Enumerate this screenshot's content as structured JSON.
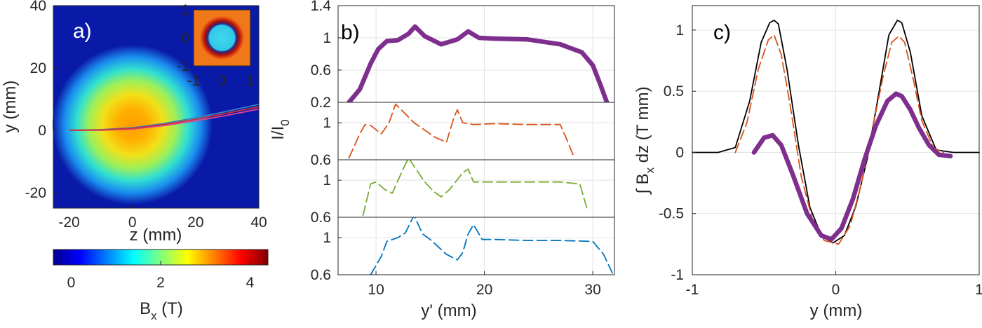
{
  "panel_a": {
    "label": "a)",
    "xlabel": "z (mm)",
    "ylabel": "y (mm)",
    "xticks": [
      "-20",
      "0",
      "20",
      "40"
    ],
    "yticks": [
      "-20",
      "0",
      "20",
      "40"
    ],
    "inset_xticks": [
      "-1",
      "0",
      "1"
    ],
    "inset_yticks": [
      "-1",
      "0",
      "1"
    ],
    "colorbar_ticks": [
      "0",
      "2",
      "4"
    ],
    "colorbar_label_base": "B",
    "colorbar_label_sub": "x",
    "colorbar_label_unit": "(T)",
    "colors": {
      "background": "#0a1aa8",
      "trajectory_blue": "#3a7fc0",
      "trajectory_magenta": "#e0409a",
      "trajectory_red": "#cc3333"
    }
  },
  "panel_b": {
    "label": "b)",
    "xlabel": "y' (mm)",
    "ylabel_base": "I/I",
    "ylabel_sub": "0",
    "xticks": [
      "10",
      "20",
      "30"
    ],
    "top_yticks": [
      "1.4",
      "1",
      "0.6",
      "0.2"
    ],
    "sub_yticks_1": [
      "1",
      "0.6"
    ],
    "sub_yticks_2": [
      "1",
      "0.6"
    ],
    "sub_yticks_3": [
      "1",
      "0.6"
    ]
  },
  "panel_c": {
    "label": "c)",
    "xlabel": "y (mm)",
    "ylabel_int": "∫",
    "ylabel_base": "B",
    "ylabel_sub": "x",
    "ylabel_unit": "dz (T mm)",
    "xticks": [
      "-1",
      "0",
      "1"
    ],
    "yticks": [
      "1",
      "0.5",
      "0",
      "-0.5",
      "-1"
    ]
  },
  "chart_data": [
    {
      "type": "heatmap",
      "panel": "a",
      "xlim": [
        -25,
        40
      ],
      "ylim": [
        -25,
        40
      ],
      "colormap": "jet",
      "colorbar_range": [
        -0.4,
        4.4
      ],
      "field_peak_T": 2.9,
      "field_center_mm": [
        0,
        0
      ],
      "series": [
        {
          "type": "line",
          "x": [
            -20,
            -10,
            0,
            10,
            20,
            30,
            40
          ],
          "y": [
            0,
            0.2,
            0.8,
            2.2,
            4,
            6.1,
            8.3
          ]
        },
        {
          "type": "line",
          "x": [
            -20,
            -10,
            0,
            10,
            20,
            30,
            40
          ],
          "y": [
            0,
            0,
            0.4,
            1.5,
            3,
            4.8,
            6.8
          ]
        },
        {
          "type": "line",
          "x": [
            -20,
            -10,
            0,
            10,
            20,
            30,
            40
          ],
          "y": [
            0,
            0.1,
            0.6,
            1.8,
            3.5,
            5.5,
            7.5
          ]
        }
      ],
      "inset": {
        "type": "heatmap",
        "xlim": [
          -1,
          1
        ],
        "ylim": [
          -1,
          1
        ]
      }
    },
    {
      "type": "line",
      "panel": "b-top",
      "xlim": [
        6.5,
        32
      ],
      "ylim": [
        0.2,
        1.4
      ],
      "series": [
        {
          "color": "#7e2f8e",
          "style": "solid-thick",
          "x": [
            7.5,
            8.5,
            9.5,
            10.2,
            11,
            12,
            13,
            13.6,
            14.5,
            16,
            17.5,
            18.5,
            19.5,
            21,
            24,
            27,
            29,
            30,
            30.7,
            31.3
          ],
          "y": [
            0.2,
            0.36,
            0.68,
            0.86,
            0.96,
            0.97,
            1.05,
            1.14,
            1.02,
            0.92,
            0.98,
            1.08,
            1.0,
            0.99,
            0.98,
            0.92,
            0.82,
            0.66,
            0.42,
            0.2
          ]
        }
      ]
    },
    {
      "type": "line",
      "panel": "b-sub1",
      "xlim": [
        6.5,
        32
      ],
      "ylim": [
        0.6,
        1.22
      ],
      "series": [
        {
          "color": "#d95319",
          "style": "dashed",
          "x": [
            7.5,
            8.5,
            9,
            9.5,
            10.5,
            11.2,
            11.8,
            12.5,
            13.5,
            14.5,
            15.5,
            16.5,
            17.2,
            17.5,
            18,
            19,
            21,
            24,
            27,
            27.6,
            28.3
          ],
          "y": [
            0.62,
            0.88,
            0.98,
            0.97,
            0.88,
            1.0,
            1.2,
            1.12,
            1.0,
            0.92,
            0.84,
            0.79,
            1.06,
            1.14,
            1.0,
            0.98,
            0.99,
            0.98,
            0.98,
            0.82,
            0.62
          ]
        }
      ]
    },
    {
      "type": "line",
      "panel": "b-sub2",
      "xlim": [
        6.5,
        32
      ],
      "ylim": [
        0.6,
        1.22
      ],
      "series": [
        {
          "color": "#77ac30",
          "style": "dashed",
          "x": [
            8.8,
            9.5,
            10,
            10.8,
            11.5,
            12.5,
            13,
            13.8,
            14.5,
            15.3,
            16,
            16.8,
            18,
            18.5,
            19,
            21,
            24,
            27,
            28.8,
            29.5
          ],
          "y": [
            0.62,
            0.96,
            0.98,
            0.9,
            0.86,
            1.12,
            1.24,
            1.1,
            0.98,
            0.88,
            0.82,
            0.9,
            1.08,
            1.12,
            0.98,
            0.98,
            0.98,
            0.98,
            0.96,
            0.68
          ]
        }
      ]
    },
    {
      "type": "line",
      "panel": "b-sub3",
      "xlim": [
        6.5,
        32
      ],
      "ylim": [
        0.6,
        1.22
      ],
      "series": [
        {
          "color": "#0072bd",
          "style": "dashed",
          "x": [
            9.5,
            10.5,
            11,
            12,
            12.7,
            13.5,
            14.3,
            15,
            16.5,
            17.5,
            18,
            18.5,
            19,
            19.8,
            21,
            24,
            27,
            30,
            31,
            31.8
          ],
          "y": [
            0.6,
            0.8,
            0.96,
            1.0,
            1.05,
            1.24,
            1.04,
            0.98,
            0.82,
            0.76,
            0.84,
            1.04,
            1.14,
            0.98,
            0.98,
            0.97,
            0.97,
            0.96,
            0.82,
            0.62
          ]
        }
      ]
    },
    {
      "type": "line",
      "panel": "c",
      "xlim": [
        -1,
        1
      ],
      "ylim": [
        -1,
        1.2
      ],
      "series": [
        {
          "color": "#000000",
          "style": "solid-thin",
          "x": [
            -1,
            -0.82,
            -0.7,
            -0.6,
            -0.52,
            -0.46,
            -0.43,
            -0.4,
            -0.34,
            -0.26,
            -0.18,
            -0.1,
            -0.02,
            0.06,
            0.14,
            0.22,
            0.3,
            0.37,
            0.43,
            0.46,
            0.52,
            0.6,
            0.7,
            0.82,
            1
          ],
          "y": [
            0,
            0.0,
            0.04,
            0.42,
            0.9,
            1.06,
            1.08,
            1.05,
            0.68,
            0.06,
            -0.45,
            -0.68,
            -0.74,
            -0.68,
            -0.44,
            -0.05,
            0.48,
            0.96,
            1.08,
            1.06,
            0.82,
            0.3,
            0.02,
            0,
            0
          ]
        },
        {
          "color": "#d95319",
          "style": "dashed",
          "x": [
            -0.7,
            -0.62,
            -0.54,
            -0.47,
            -0.43,
            -0.38,
            -0.32,
            -0.24,
            -0.16,
            -0.08,
            0.02,
            0.1,
            0.18,
            0.26,
            0.33,
            0.39,
            0.44,
            0.48,
            0.54,
            0.6,
            0.68,
            0.75
          ],
          "y": [
            0,
            0.24,
            0.68,
            0.92,
            0.96,
            0.8,
            0.4,
            -0.2,
            -0.56,
            -0.72,
            -0.75,
            -0.6,
            -0.25,
            0.22,
            0.62,
            0.9,
            0.95,
            0.9,
            0.6,
            0.26,
            0.04,
            0
          ]
        },
        {
          "color": "#7e2f8e",
          "style": "solid-thick",
          "x": [
            -0.57,
            -0.5,
            -0.44,
            -0.38,
            -0.3,
            -0.2,
            -0.1,
            -0.03,
            0.04,
            0.12,
            0.2,
            0.28,
            0.36,
            0.42,
            0.46,
            0.52,
            0.58,
            0.65,
            0.72,
            0.8
          ],
          "y": [
            0,
            0.12,
            0.14,
            0.06,
            -0.18,
            -0.5,
            -0.68,
            -0.71,
            -0.62,
            -0.38,
            -0.06,
            0.22,
            0.42,
            0.48,
            0.46,
            0.35,
            0.2,
            0.06,
            -0.02,
            -0.03
          ]
        }
      ]
    }
  ]
}
